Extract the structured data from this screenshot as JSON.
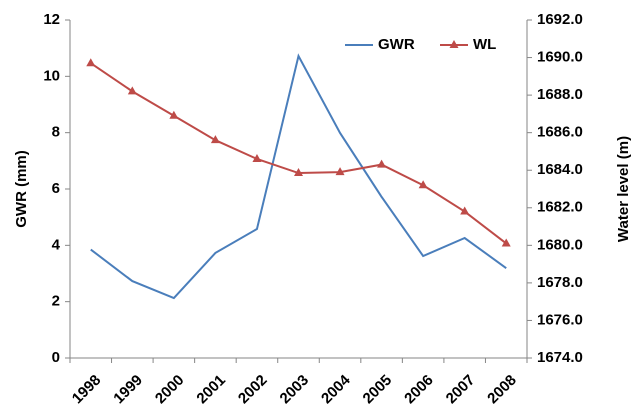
{
  "chart_data": {
    "type": "line",
    "categories": [
      "1998",
      "1999",
      "2000",
      "2001",
      "2002",
      "2003",
      "2004",
      "2005",
      "2006",
      "2007",
      "2008"
    ],
    "series": [
      {
        "name": "GWR",
        "color": "#4a7ebb",
        "marker": "none",
        "values": [
          3.85,
          2.73,
          2.13,
          3.73,
          4.58,
          10.72,
          7.99,
          5.72,
          3.62,
          4.26,
          3.19
        ]
      },
      {
        "name": "WL",
        "color": "#be4b48",
        "marker": "triangle",
        "axis": "y2",
        "values": [
          1689.7,
          1688.2,
          1686.9,
          1685.6,
          1684.6,
          1683.85,
          1683.9,
          1684.3,
          1683.2,
          1681.8,
          1680.1
        ]
      }
    ],
    "ylabel": "GWR (mm)",
    "y2label": "Water level (m)",
    "ylim": [
      0,
      12
    ],
    "yticks": [
      0,
      2,
      4,
      6,
      8,
      10,
      12
    ],
    "y2lim": [
      1674,
      1692
    ],
    "y2ticks": [
      {
        "value": 1674,
        "label": "1674.0"
      },
      {
        "value": 1676,
        "label": "1676.0"
      },
      {
        "value": 1678,
        "label": "1678.0"
      },
      {
        "value": 1680,
        "label": "1680.0"
      },
      {
        "value": 1682,
        "label": "1682.0"
      },
      {
        "value": 1684,
        "label": "1684.0"
      },
      {
        "value": 1686,
        "label": "1686.0"
      },
      {
        "value": 1688,
        "label": "1688.0"
      },
      {
        "value": 1690,
        "label": "1690.0"
      },
      {
        "value": 1692,
        "label": "1692.0"
      }
    ],
    "legend": "upper right",
    "grid": false
  }
}
